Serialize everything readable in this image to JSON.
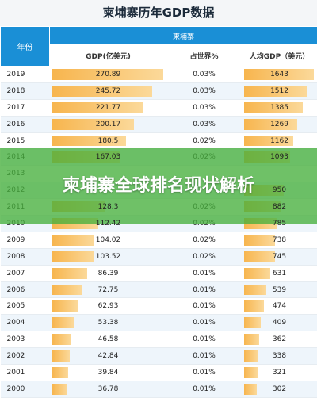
{
  "page_title": "柬埔寨历年GDP数据",
  "table": {
    "country_label": "柬埔寨",
    "col_year": "年份",
    "col_gdp": "GDP(亿美元)",
    "col_share": "占世界%",
    "col_per_capita": "人均GDP（美元）",
    "rows": [
      {
        "year": "2019",
        "gdp": "270.89",
        "share": "0.03%",
        "per_capita": "1643"
      },
      {
        "year": "2018",
        "gdp": "245.72",
        "share": "0.03%",
        "per_capita": "1512"
      },
      {
        "year": "2017",
        "gdp": "221.77",
        "share": "0.03%",
        "per_capita": "1385"
      },
      {
        "year": "2016",
        "gdp": "200.17",
        "share": "0.03%",
        "per_capita": "1269"
      },
      {
        "year": "2015",
        "gdp": "180.5",
        "share": "0.02%",
        "per_capita": "1162"
      },
      {
        "year": "2014",
        "gdp": "167.03",
        "share": "0.02%",
        "per_capita": "1093"
      },
      {
        "year": "2013",
        "gdp": "",
        "share": "",
        "per_capita": ""
      },
      {
        "year": "2012",
        "gdp": "",
        "share": "",
        "per_capita": "950"
      },
      {
        "year": "2011",
        "gdp": "128.3",
        "share": "0.02%",
        "per_capita": "882"
      },
      {
        "year": "2010",
        "gdp": "112.42",
        "share": "0.02%",
        "per_capita": "785"
      },
      {
        "year": "2009",
        "gdp": "104.02",
        "share": "0.02%",
        "per_capita": "738"
      },
      {
        "year": "2008",
        "gdp": "103.52",
        "share": "0.02%",
        "per_capita": "745"
      },
      {
        "year": "2007",
        "gdp": "86.39",
        "share": "0.01%",
        "per_capita": "631"
      },
      {
        "year": "2006",
        "gdp": "72.75",
        "share": "0.01%",
        "per_capita": "539"
      },
      {
        "year": "2005",
        "gdp": "62.93",
        "share": "0.01%",
        "per_capita": "474"
      },
      {
        "year": "2004",
        "gdp": "53.38",
        "share": "0.01%",
        "per_capita": "409"
      },
      {
        "year": "2003",
        "gdp": "46.58",
        "share": "0.01%",
        "per_capita": "362"
      },
      {
        "year": "2002",
        "gdp": "42.84",
        "share": "0.01%",
        "per_capita": "338"
      },
      {
        "year": "2001",
        "gdp": "39.84",
        "share": "0.01%",
        "per_capita": "321"
      },
      {
        "year": "2000",
        "gdp": "36.78",
        "share": "0.01%",
        "per_capita": "302"
      }
    ]
  },
  "overlay": {
    "text": "柬埔寨全球排名现状解析"
  },
  "colors": {
    "header_blue": "#1a8fd6",
    "bar_orange": "#f7b54e",
    "overlay_green": "#46af3c"
  }
}
